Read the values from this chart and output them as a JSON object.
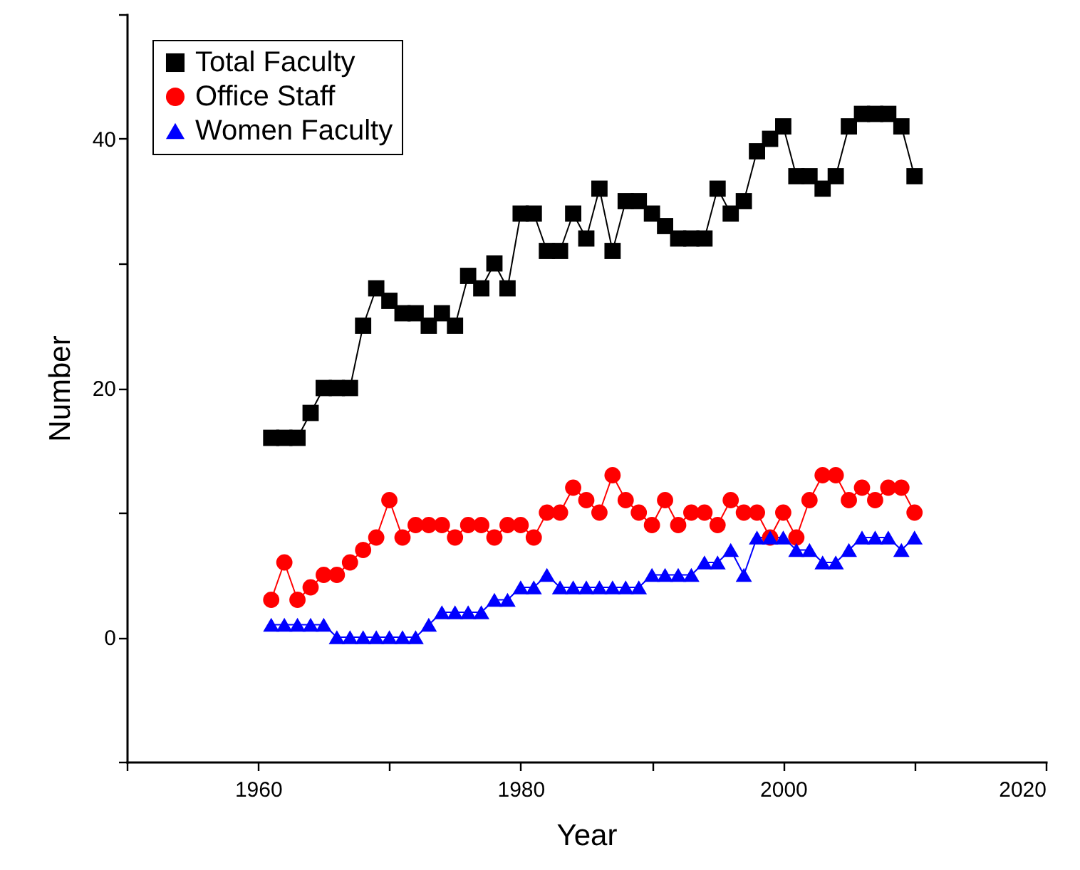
{
  "chart_data": {
    "type": "line",
    "xlabel": "Year",
    "ylabel": "Number",
    "x": [
      1961,
      1962,
      1963,
      1964,
      1965,
      1966,
      1967,
      1968,
      1969,
      1970,
      1971,
      1972,
      1973,
      1974,
      1975,
      1976,
      1977,
      1978,
      1979,
      1980,
      1981,
      1982,
      1983,
      1984,
      1985,
      1986,
      1987,
      1988,
      1989,
      1990,
      1991,
      1992,
      1993,
      1994,
      1995,
      1996,
      1997,
      1998,
      1999,
      2000,
      2001,
      2002,
      2003,
      2004,
      2005,
      2006,
      2007,
      2008,
      2009,
      2010
    ],
    "series": [
      {
        "name": "Total Faculty",
        "color": "#000000",
        "marker": "square",
        "values": [
          16,
          16,
          16,
          18,
          20,
          20,
          20,
          25,
          28,
          27,
          26,
          26,
          25,
          26,
          25,
          29,
          28,
          30,
          28,
          34,
          34,
          31,
          31,
          34,
          32,
          36,
          31,
          35,
          35,
          34,
          33,
          32,
          32,
          32,
          36,
          34,
          35,
          39,
          40,
          41,
          37,
          37,
          36,
          37,
          41,
          42,
          42,
          42,
          41,
          37
        ]
      },
      {
        "name": "Office Staff",
        "color": "#ff0000",
        "marker": "circle",
        "values": [
          3,
          6,
          3,
          4,
          5,
          5,
          6,
          7,
          8,
          11,
          8,
          9,
          9,
          9,
          8,
          9,
          9,
          8,
          9,
          9,
          8,
          10,
          10,
          12,
          11,
          10,
          13,
          11,
          10,
          9,
          11,
          9,
          10,
          10,
          9,
          11,
          10,
          10,
          8,
          10,
          8,
          11,
          13,
          13,
          11,
          12,
          11,
          12,
          12,
          10
        ]
      },
      {
        "name": "Women Faculty",
        "color": "#0000ff",
        "marker": "triangle",
        "values": [
          1,
          1,
          1,
          1,
          1,
          0,
          0,
          0,
          0,
          0,
          0,
          0,
          1,
          2,
          2,
          2,
          2,
          3,
          3,
          4,
          4,
          5,
          4,
          4,
          4,
          4,
          4,
          4,
          4,
          5,
          5,
          5,
          5,
          6,
          6,
          7,
          5,
          8,
          8,
          8,
          7,
          7,
          6,
          6,
          7,
          8,
          8,
          8,
          7,
          8
        ]
      }
    ],
    "xlim": [
      1950,
      2020
    ],
    "xticks": [
      {
        "value": 1950,
        "label": null
      },
      1960,
      {
        "value": 1970,
        "label": null
      },
      1980,
      {
        "value": 1990,
        "label": null
      },
      2000,
      {
        "value": 2010,
        "label": null
      },
      2020
    ],
    "ylim": [
      -10,
      50
    ],
    "yticks": [
      {
        "value": -10,
        "label": null
      },
      0,
      {
        "value": 10,
        "label": null
      },
      20,
      {
        "value": 30,
        "label": null
      },
      40,
      {
        "value": 50,
        "label": null
      }
    ],
    "legend": "top left",
    "line_style": "solid"
  }
}
